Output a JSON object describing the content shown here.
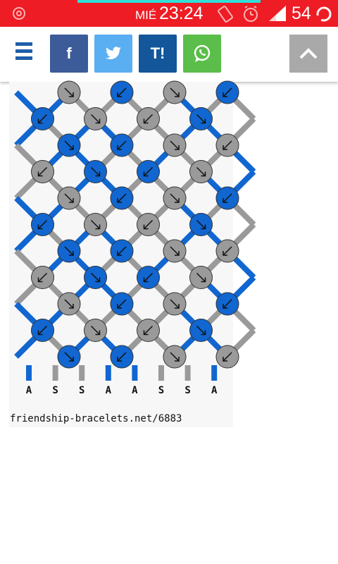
{
  "status_bar": {
    "day": "MIÉ",
    "time": "23:24",
    "battery": "54",
    "bg_color": "#ee1c24",
    "icons": [
      "target-icon",
      "vibrate-icon",
      "alarm-icon",
      "signal-icon",
      "battery-ring-icon"
    ]
  },
  "toolbar": {
    "menu_icon": "hamburger-menu-icon",
    "share_buttons": [
      {
        "network": "facebook",
        "label": "f",
        "color": "#3b5b99"
      },
      {
        "network": "twitter",
        "icon": "twitter-bird-icon",
        "color": "#5aaef2"
      },
      {
        "network": "taringa",
        "label": "T!",
        "color": "#14569a"
      },
      {
        "network": "whatsapp",
        "icon": "whatsapp-icon",
        "color": "#5bbd4a"
      }
    ],
    "scroll_top_icon": "chevron-up-icon"
  },
  "pattern": {
    "string_labels": [
      "A",
      "S",
      "S",
      "A",
      "A",
      "S",
      "S",
      "A"
    ],
    "source": "friendship-bracelets.net/6883",
    "colors": {
      "A": "#1166d0",
      "S": "#9a9a9a"
    }
  }
}
